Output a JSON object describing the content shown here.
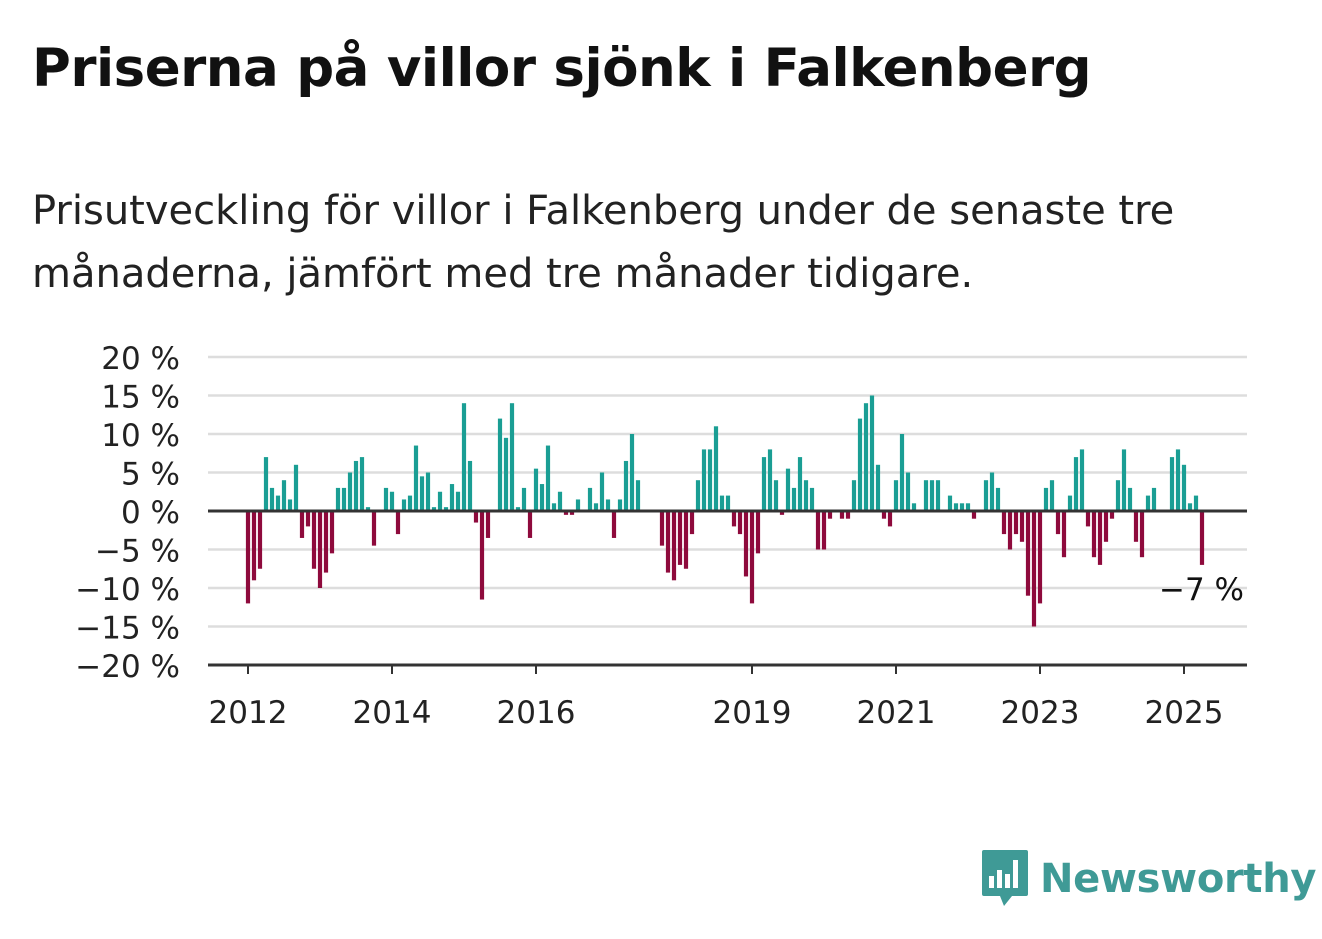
{
  "title": "Priserna på villor sjönk i Falkenberg",
  "subtitle": "Prisutveckling för villor i Falkenberg under de senaste tre månaderna, jämfört med tre månader tidigare.",
  "brand": {
    "name": "Newsworthy",
    "color": "#3f9a96",
    "icon": "bar-chart-speech-bubble-icon"
  },
  "colors": {
    "positive": "#1a9e94",
    "negative": "#8e0a3c",
    "grid": "#dddddd",
    "axis": "#333333"
  },
  "chart_data": {
    "type": "bar",
    "x_start": "2012-01",
    "x_interval": "month",
    "ylim": [
      -20,
      20
    ],
    "yticks": [
      20,
      15,
      10,
      5,
      0,
      -5,
      -10,
      -15,
      -20
    ],
    "ytick_labels": [
      "20 %",
      "15 %",
      "10 %",
      "5 %",
      "0 %",
      "−5 %",
      "−10 %",
      "−15 %",
      "−20 %"
    ],
    "xticks": [
      {
        "label": "2012",
        "date": "2012-01"
      },
      {
        "label": "2014",
        "date": "2014-01"
      },
      {
        "label": "2016",
        "date": "2016-01"
      },
      {
        "label": "2019",
        "date": "2019-01"
      },
      {
        "label": "2021",
        "date": "2021-01"
      },
      {
        "label": "2023",
        "date": "2023-01"
      },
      {
        "label": "2025",
        "date": "2025-01"
      }
    ],
    "values": [
      -12,
      -9,
      -7.5,
      7,
      3,
      2,
      4,
      1.5,
      6,
      -3.5,
      -2,
      -7.5,
      -10,
      -8,
      -5.5,
      3,
      3,
      5,
      6.5,
      7,
      0.5,
      -4.5,
      0,
      3,
      2.5,
      -3,
      1.5,
      2,
      8.5,
      4.5,
      5,
      0.5,
      2.5,
      0.5,
      3.5,
      2.5,
      14,
      6.5,
      -1.5,
      -11.5,
      -3.5,
      0,
      12,
      9.5,
      14,
      0.5,
      3,
      -3.5,
      5.5,
      3.5,
      8.5,
      1,
      2.5,
      -0.5,
      -0.5,
      1.5,
      0,
      3,
      1,
      5,
      1.5,
      -3.5,
      1.5,
      6.5,
      10,
      4,
      0,
      0,
      0,
      -4.5,
      -8,
      -9,
      -7,
      -7.5,
      -3,
      4,
      8,
      8,
      11,
      2,
      2,
      -2,
      -3,
      -8.5,
      -12,
      -5.5,
      7,
      8,
      4,
      -0.5,
      5.5,
      3,
      7,
      4,
      3,
      -5,
      -5,
      -1,
      0,
      -1,
      -1,
      4,
      12,
      14,
      15,
      6,
      -1,
      -2,
      4,
      10,
      5,
      1,
      0,
      4,
      4,
      4,
      0,
      2,
      1,
      1,
      1,
      -1,
      0,
      4,
      5,
      3,
      -3,
      -5,
      -3,
      -4,
      -11,
      -15,
      -12,
      3,
      4,
      -3,
      -6,
      2,
      7,
      8,
      -2,
      -6,
      -7,
      -4,
      -1,
      4,
      8,
      3,
      -4,
      -6,
      2,
      3,
      0,
      0,
      7,
      8,
      6,
      1,
      2,
      -7
    ],
    "annotation": {
      "label": "−7 %",
      "value": -7
    }
  }
}
